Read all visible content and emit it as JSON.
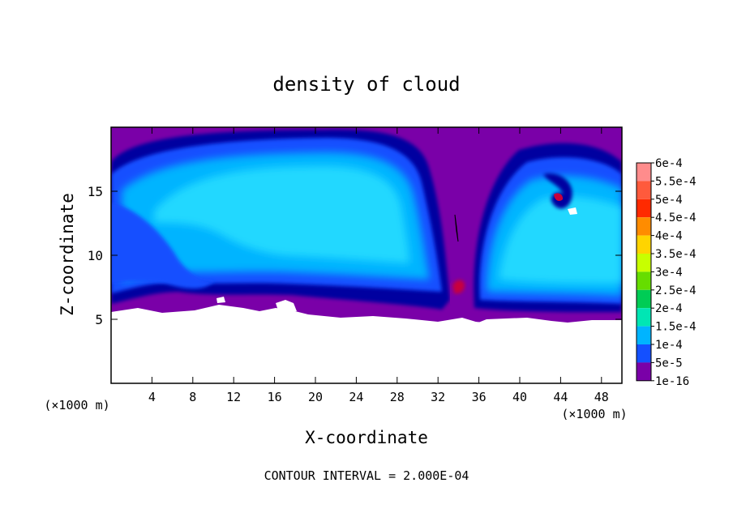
{
  "chart_data": {
    "type": "heatmap",
    "title": "density of cloud",
    "xlabel": "X-coordinate",
    "ylabel": "Z-coordinate",
    "x_unit_label": "(×1000 m)",
    "y_unit_label": "(×1000 m)",
    "xlim": [
      0,
      50
    ],
    "ylim": [
      0,
      20
    ],
    "x_ticks": [
      4,
      8,
      12,
      16,
      20,
      24,
      28,
      32,
      36,
      40,
      44,
      48
    ],
    "y_ticks": [
      5,
      10,
      15
    ],
    "footer": "CONTOUR INTERVAL = 2.000E-04",
    "colorbar": {
      "labels": [
        "6e-4",
        "5.5e-4",
        "5e-4",
        "4.5e-4",
        "4e-4",
        "3.5e-4",
        "3e-4",
        "2.5e-4",
        "2e-4",
        "1.5e-4",
        "1e-4",
        "5e-5",
        "1e-16"
      ],
      "colors": [
        "#ff8c8c",
        "#ff5a3c",
        "#ff2a00",
        "#ff8c00",
        "#ffd400",
        "#c8ff00",
        "#66dd00",
        "#00cc55",
        "#00e6b4",
        "#00b4ff",
        "#1450ff",
        "#0000a0",
        "#7a00a8"
      ]
    },
    "cloud_region": {
      "cloud_base_km": 5,
      "cloud_top_km": 19.5,
      "main_cell_x_km": [
        2,
        32
      ],
      "gap_x_km": 33.5,
      "right_cell_x_km": [
        35,
        50
      ]
    }
  }
}
